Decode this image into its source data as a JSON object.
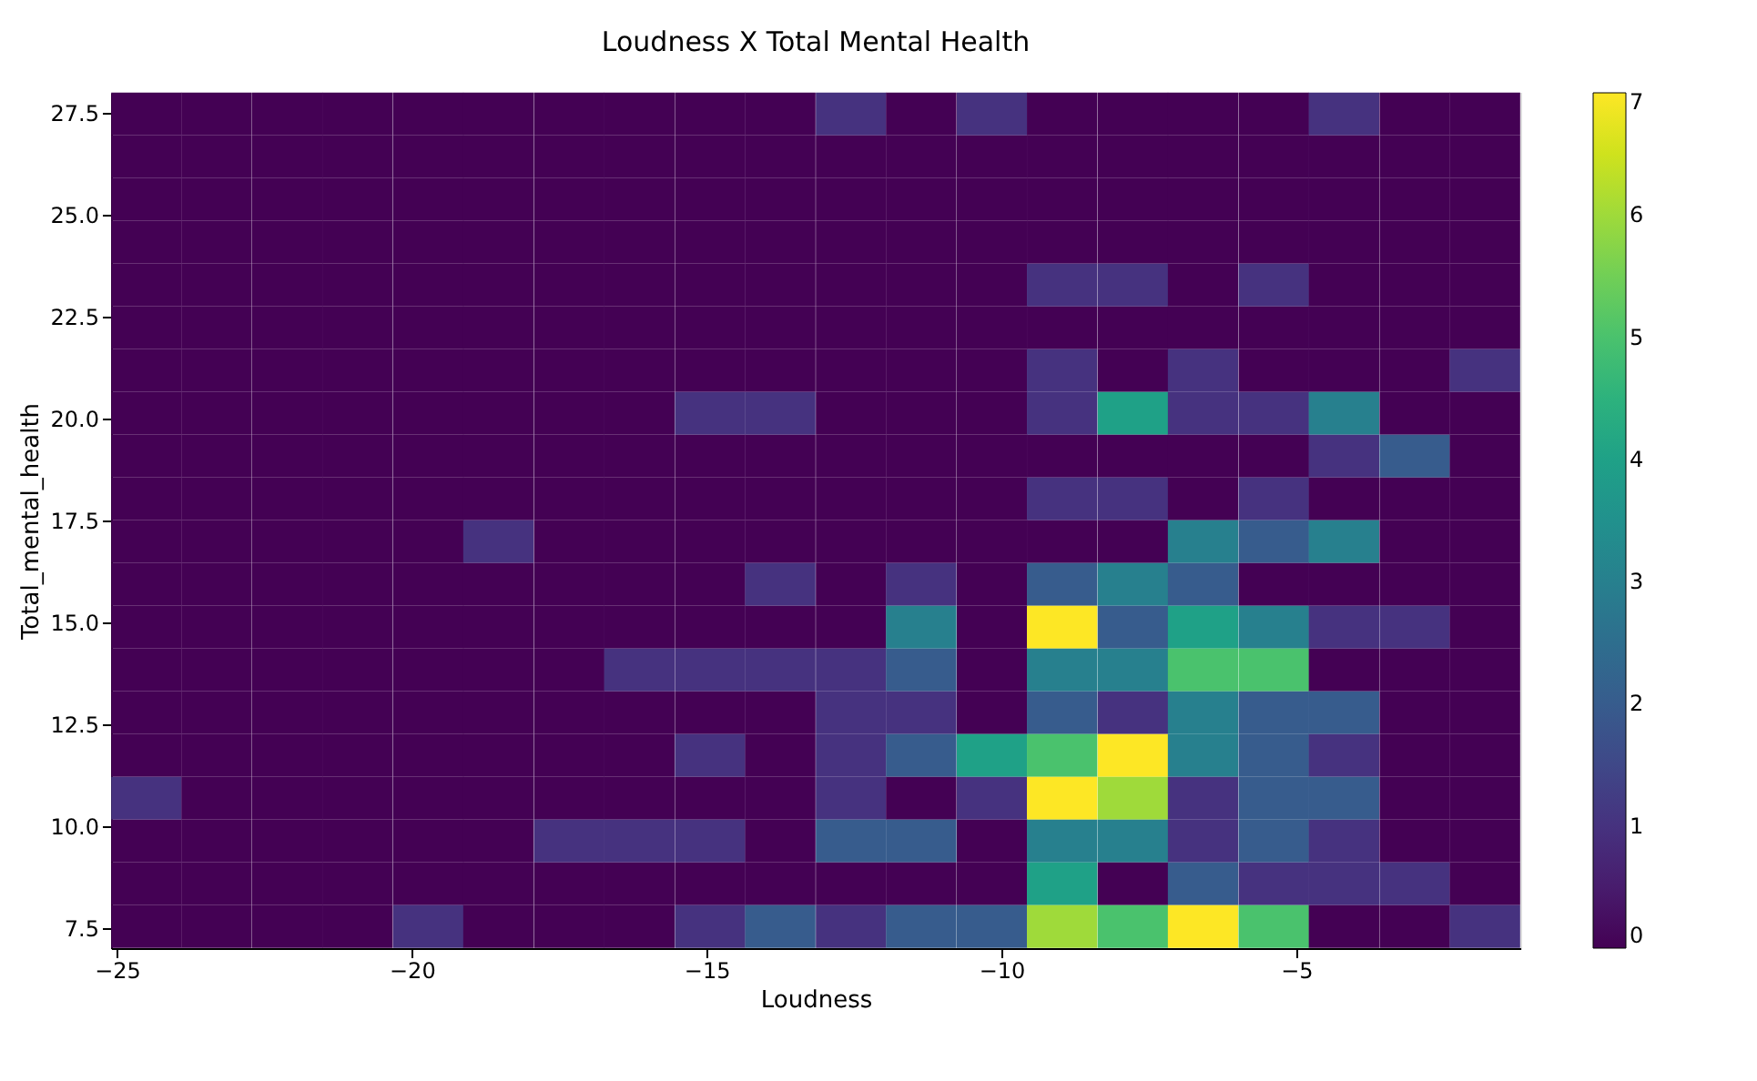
{
  "chart_data": {
    "type": "heatmap",
    "title": "Loudness X Total Mental Health",
    "xlabel": "Loudness",
    "ylabel": "Total_mental_health",
    "x": [
      -24.5,
      -23.31,
      -22.11,
      -20.92,
      -19.72,
      -18.53,
      -17.33,
      -16.14,
      -14.94,
      -13.75,
      -12.55,
      -11.36,
      -10.16,
      -8.97,
      -7.77,
      -6.58,
      -5.38,
      -4.19,
      -2.99,
      -1.8
    ],
    "y": [
      27.48,
      26.43,
      25.38,
      24.33,
      23.28,
      22.23,
      21.18,
      20.13,
      19.08,
      18.03,
      16.98,
      15.93,
      14.88,
      13.83,
      12.78,
      11.73,
      10.68,
      9.63,
      8.58,
      7.53
    ],
    "cells": [
      [
        0,
        0,
        0,
        0,
        0,
        0,
        0,
        0,
        0,
        0,
        1,
        0,
        1,
        0,
        0,
        0,
        0,
        1,
        0,
        0
      ],
      [
        0,
        0,
        0,
        0,
        0,
        0,
        0,
        0,
        0,
        0,
        0,
        0,
        0,
        0,
        0,
        0,
        0,
        0,
        0,
        0
      ],
      [
        0,
        0,
        0,
        0,
        0,
        0,
        0,
        0,
        0,
        0,
        0,
        0,
        0,
        0,
        0,
        0,
        0,
        0,
        0,
        0
      ],
      [
        0,
        0,
        0,
        0,
        0,
        0,
        0,
        0,
        0,
        0,
        0,
        0,
        0,
        0,
        0,
        0,
        0,
        0,
        0,
        0
      ],
      [
        0,
        0,
        0,
        0,
        0,
        0,
        0,
        0,
        0,
        0,
        0,
        0,
        0,
        1,
        1,
        0,
        1,
        0,
        0,
        0
      ],
      [
        0,
        0,
        0,
        0,
        0,
        0,
        0,
        0,
        0,
        0,
        0,
        0,
        0,
        0,
        0,
        0,
        0,
        0,
        0,
        0
      ],
      [
        0,
        0,
        0,
        0,
        0,
        0,
        0,
        0,
        0,
        0,
        0,
        0,
        0,
        1,
        0,
        1,
        0,
        0,
        0,
        1
      ],
      [
        0,
        0,
        0,
        0,
        0,
        0,
        0,
        0,
        1,
        1,
        0,
        0,
        0,
        1,
        4,
        1,
        1,
        3,
        0,
        0
      ],
      [
        0,
        0,
        0,
        0,
        0,
        0,
        0,
        0,
        0,
        0,
        0,
        0,
        0,
        0,
        0,
        0,
        0,
        1,
        2,
        0
      ],
      [
        0,
        0,
        0,
        0,
        0,
        0,
        0,
        0,
        0,
        0,
        0,
        0,
        0,
        1,
        1,
        0,
        1,
        0,
        0,
        0
      ],
      [
        0,
        0,
        0,
        0,
        0,
        1,
        0,
        0,
        0,
        0,
        0,
        0,
        0,
        0,
        0,
        3,
        2,
        3,
        0,
        0
      ],
      [
        0,
        0,
        0,
        0,
        0,
        0,
        0,
        0,
        0,
        1,
        0,
        1,
        0,
        2,
        3,
        2,
        0,
        0,
        0,
        0
      ],
      [
        0,
        0,
        0,
        0,
        0,
        0,
        0,
        0,
        0,
        0,
        0,
        3,
        0,
        7,
        2,
        4,
        3,
        1,
        1,
        0
      ],
      [
        0,
        0,
        0,
        0,
        0,
        0,
        0,
        1,
        1,
        1,
        1,
        2,
        0,
        3,
        3,
        5,
        5,
        0,
        0,
        0
      ],
      [
        0,
        0,
        0,
        0,
        0,
        0,
        0,
        0,
        0,
        0,
        1,
        1,
        0,
        2,
        1,
        3,
        2,
        2,
        0,
        0
      ],
      [
        0,
        0,
        0,
        0,
        0,
        0,
        0,
        0,
        1,
        0,
        1,
        2,
        4,
        5,
        7,
        3,
        2,
        1,
        0,
        0
      ],
      [
        1,
        0,
        0,
        0,
        0,
        0,
        0,
        0,
        0,
        0,
        1,
        0,
        1,
        7,
        6,
        1,
        2,
        2,
        0,
        0
      ],
      [
        0,
        0,
        0,
        0,
        0,
        0,
        1,
        1,
        1,
        0,
        2,
        2,
        0,
        3,
        3,
        1,
        2,
        1,
        0,
        0
      ],
      [
        0,
        0,
        0,
        0,
        0,
        0,
        0,
        0,
        0,
        0,
        0,
        0,
        0,
        4,
        0,
        2,
        1,
        1,
        1,
        0
      ],
      [
        0,
        0,
        0,
        0,
        1,
        0,
        0,
        0,
        1,
        2,
        1,
        2,
        2,
        6,
        5,
        7,
        5,
        0,
        0,
        1
      ]
    ],
    "xlim": [
      -25.1,
      -1.2
    ],
    "ylim": [
      7.0,
      28.0
    ],
    "xticks": [
      {
        "value": -25,
        "label": "−25"
      },
      {
        "value": -20,
        "label": "−20"
      },
      {
        "value": -15,
        "label": "−15"
      },
      {
        "value": -10,
        "label": "−10"
      },
      {
        "value": -5,
        "label": "−5"
      }
    ],
    "yticks": [
      7.5,
      {
        "value": 10,
        "label": "10.0"
      },
      12.5,
      {
        "value": 15,
        "label": "15.0"
      },
      17.5,
      {
        "value": 20,
        "label": "20.0"
      },
      22.5,
      {
        "value": 25,
        "label": "25.0"
      },
      27.5
    ],
    "clim": [
      0,
      7
    ],
    "cticks": [
      0,
      1,
      2,
      3,
      4,
      5,
      6,
      7
    ]
  }
}
